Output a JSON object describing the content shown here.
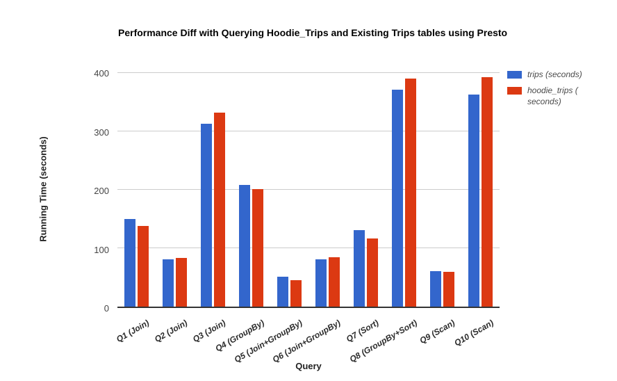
{
  "chart_data": {
    "type": "bar",
    "title": "Performance Diff with Querying Hoodie_Trips and Existing Trips tables using Presto",
    "xlabel": "Query",
    "ylabel": "Running Time (seconds)",
    "ylim": [
      0,
      400
    ],
    "yticks": [
      0,
      100,
      200,
      300,
      400
    ],
    "grid": "horizontal",
    "legend_position": "right",
    "background_color": "#ffffff",
    "categories": [
      "Q1 (Join)",
      "Q2 (Join)",
      "Q3 (Join)",
      "Q4 (GroupBy)",
      "Q5 (Join+GroupBy)",
      "Q6 (Join+GroupBy)",
      "Q7 (Sort)",
      "Q8 (GroupBy+Sort)",
      "Q9 (Scan)",
      "Q10 (Scan)"
    ],
    "series": [
      {
        "name": "trips (seconds)",
        "legend_lines": [
          "trips (seconds)"
        ],
        "color": "#3366cc",
        "values": [
          150,
          81,
          313,
          208,
          51,
          81,
          131,
          371,
          61,
          363
        ]
      },
      {
        "name": "hoodie_trips (seconds)",
        "legend_lines": [
          "hoodie_trips (",
          "seconds)"
        ],
        "color": "#dc3912",
        "values": [
          138,
          83,
          332,
          201,
          45,
          85,
          117,
          390,
          60,
          393
        ]
      }
    ]
  }
}
